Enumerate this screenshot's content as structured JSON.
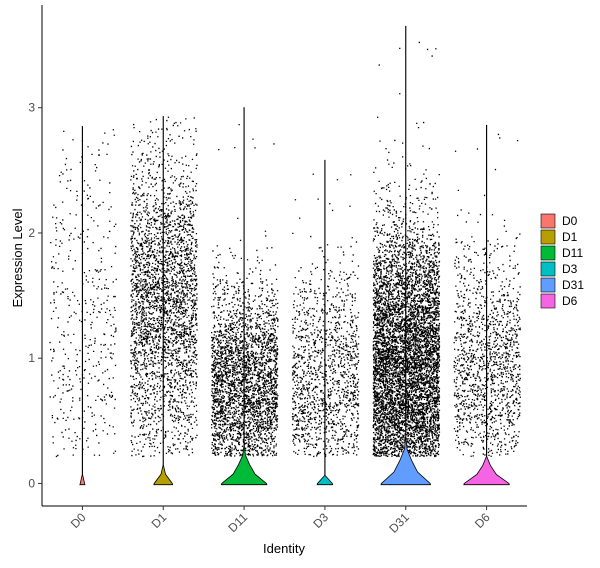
{
  "chart_data": {
    "type": "violin",
    "xlabel": "Identity",
    "ylabel": "Expression Level",
    "ylim": [
      -0.18,
      3.82
    ],
    "y_ticks": [
      0,
      1,
      2,
      3
    ],
    "categories": [
      "D0",
      "D1",
      "D11",
      "D3",
      "D31",
      "D6"
    ],
    "legend_position": "right",
    "jitter_points": true,
    "series": [
      {
        "name": "D0",
        "color": "#F8766D",
        "max": 2.85,
        "points": 420,
        "zero_frac": 0.78,
        "peak_width": 0.05,
        "density_top": 0.04,
        "p_mean": 1.35,
        "p_sd": 0.75
      },
      {
        "name": "D1",
        "color": "#B79F00",
        "max": 2.93,
        "points": 3000,
        "zero_frac": 0.55,
        "peak_width": 0.22,
        "density_top": 0.12,
        "p_mean": 1.45,
        "p_sd": 0.6
      },
      {
        "name": "D11",
        "color": "#00BA38",
        "max": 3.0,
        "points": 2900,
        "zero_frac": 0.5,
        "peak_width": 0.55,
        "density_top": 0.25,
        "p_mean": 0.8,
        "p_sd": 0.4
      },
      {
        "name": "D3",
        "color": "#00BFC4",
        "max": 2.58,
        "points": 1300,
        "zero_frac": 0.7,
        "peak_width": 0.18,
        "density_top": 0.06,
        "p_mean": 0.85,
        "p_sd": 0.45
      },
      {
        "name": "D31",
        "color": "#619CFF",
        "max": 3.65,
        "points": 6500,
        "zero_frac": 0.45,
        "peak_width": 0.6,
        "density_top": 0.3,
        "p_mean": 1.0,
        "p_sd": 0.55
      },
      {
        "name": "D6",
        "color": "#F564E3",
        "max": 2.86,
        "points": 1350,
        "zero_frac": 0.5,
        "peak_width": 0.55,
        "density_top": 0.2,
        "p_mean": 0.95,
        "p_sd": 0.45
      }
    ]
  }
}
